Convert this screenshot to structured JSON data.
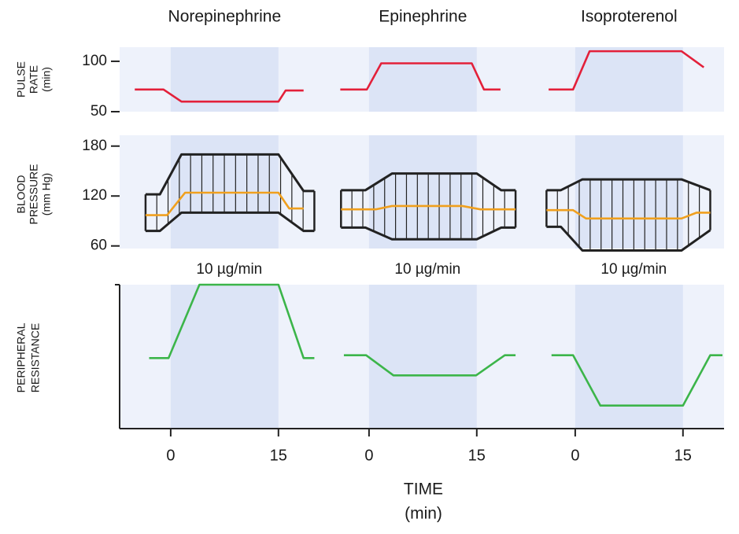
{
  "chart_data": {
    "type": "line",
    "columns": [
      "Norepinephrine",
      "Epinephrine",
      "Isoproterenol"
    ],
    "dose_labels": [
      "10 µg/min",
      "10 µg/min",
      "10 µg/min"
    ],
    "xlabel": [
      "TIME",
      "(min)"
    ],
    "xlim": [
      -7,
      20.5
    ],
    "xticks": [
      0,
      15
    ],
    "infusion": [
      0,
      15
    ],
    "panels": [
      {
        "ylabel": [
          "PULSE",
          "RATE",
          "(min)"
        ],
        "ylim": [
          50,
          114
        ],
        "yticks": [
          50,
          100
        ],
        "hatch": false,
        "columns": [
          [
            {
              "color": "#e3203a",
              "x": [
                -5,
                -1,
                1.5,
                15,
                16,
                18.5
              ],
              "values": [
                72,
                72,
                60,
                60,
                71,
                71
              ]
            }
          ],
          [
            {
              "color": "#e3203a",
              "x": [
                -4,
                -0.3,
                1.7,
                14.3,
                16,
                18.3
              ],
              "values": [
                72,
                72,
                98,
                98,
                72,
                72
              ]
            }
          ],
          [
            {
              "color": "#e3203a",
              "x": [
                -3.7,
                -0.3,
                2,
                14.8,
                17.9
              ],
              "values": [
                72,
                72,
                110,
                110,
                94
              ]
            }
          ]
        ]
      },
      {
        "ylabel": [
          "BLOOD",
          "PRESSURE",
          "(mm Hg)"
        ],
        "ylim": [
          55,
          193
        ],
        "yticks": [
          60,
          120,
          180
        ],
        "hatch": true,
        "columns": [
          [
            {
              "color": "#222222",
              "x": [
                -3.5,
                -1.5,
                1.5,
                15,
                18.5,
                20
              ],
              "values": [
                122,
                122,
                170,
                170,
                126,
                126
              ]
            },
            {
              "color": "#f0a01e",
              "x": [
                -3.5,
                -0.5,
                2,
                15,
                16.5,
                18.5
              ],
              "values": [
                97,
                97,
                124,
                124,
                105,
                105
              ]
            },
            {
              "color": "#222222",
              "x": [
                -3.5,
                -1.5,
                1.5,
                15,
                18.5,
                20
              ],
              "values": [
                78,
                78,
                100,
                100,
                78,
                78
              ]
            }
          ],
          [
            {
              "color": "#222222",
              "x": [
                -3.9,
                -0.5,
                3.2,
                15,
                18.4,
                20.4
              ],
              "values": [
                127,
                127,
                147,
                147,
                127,
                127
              ]
            },
            {
              "color": "#f0a01e",
              "x": [
                -3.9,
                1,
                3.2,
                13,
                15.5,
                20.4
              ],
              "values": [
                104,
                104,
                108,
                108,
                104,
                104
              ]
            },
            {
              "color": "#222222",
              "x": [
                -3.9,
                -0.5,
                3.2,
                15,
                18.4,
                20.4
              ],
              "values": [
                82,
                82,
                68,
                68,
                82,
                82
              ]
            }
          ],
          [
            {
              "color": "#222222",
              "x": [
                -4,
                -2,
                1,
                14.8,
                18.8
              ],
              "values": [
                127,
                127,
                140,
                140,
                127
              ]
            },
            {
              "color": "#f0a01e",
              "x": [
                -4,
                -0.3,
                1.5,
                14.8,
                16.9,
                18.8
              ],
              "values": [
                103,
                103,
                93,
                93,
                100,
                100
              ]
            },
            {
              "color": "#222222",
              "x": [
                -4,
                -2,
                1,
                14.8,
                18.8
              ],
              "values": [
                83,
                83,
                54.5,
                54.5,
                79
              ]
            }
          ]
        ]
      },
      {
        "ylabel": [
          "PERIPHERAL",
          "RESISTANCE"
        ],
        "ylim": [
          0,
          100
        ],
        "yticks": [],
        "hatch": false,
        "columns": [
          [
            {
              "color": "#3cb54a",
              "x": [
                -3,
                -0.3,
                4,
                15,
                18.5,
                20
              ],
              "values": [
                49,
                49,
                100,
                100,
                49,
                49
              ]
            }
          ],
          [
            {
              "color": "#3cb54a",
              "x": [
                -3.5,
                -0.4,
                3.4,
                14.9,
                18.9,
                20.4
              ],
              "values": [
                51,
                51,
                37,
                37,
                51,
                51
              ]
            }
          ],
          [
            {
              "color": "#3cb54a",
              "x": [
                -3.3,
                -0.3,
                3.5,
                15,
                18.8,
                20.5
              ],
              "values": [
                51,
                51,
                16,
                16,
                51,
                51
              ]
            }
          ]
        ]
      }
    ]
  }
}
